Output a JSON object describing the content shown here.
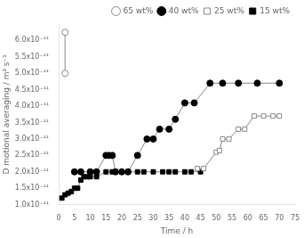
{
  "chart_data": {
    "type": "line",
    "xlabel": "Time / h",
    "ylabel": "D motional averaging / m² s⁻¹",
    "xlim": [
      0,
      75
    ],
    "ylim": [
      1e-11,
      6.5e-11
    ],
    "xticks": [
      0,
      5,
      10,
      15,
      20,
      25,
      30,
      35,
      40,
      45,
      50,
      55,
      60,
      65,
      70,
      75
    ],
    "yticks": [
      {
        "value": 1e-11,
        "label": "1.0x10⁻¹¹"
      },
      {
        "value": 1.5e-11,
        "label": "1.5x10⁻¹¹"
      },
      {
        "value": 2e-11,
        "label": "2.0x10⁻¹¹"
      },
      {
        "value": 2.5e-11,
        "label": "2.5x10⁻¹¹"
      },
      {
        "value": 3e-11,
        "label": "3.0x10⁻¹¹"
      },
      {
        "value": 3.5e-11,
        "label": "3.5x10⁻¹¹"
      },
      {
        "value": 4e-11,
        "label": "4.0x10⁻¹¹"
      },
      {
        "value": 4.5e-11,
        "label": "4.5x10⁻¹¹"
      },
      {
        "value": 5e-11,
        "label": "5.0x10⁻¹¹"
      },
      {
        "value": 5.5e-11,
        "label": "5.5x10⁻¹¹"
      },
      {
        "value": 6e-11,
        "label": "6.0x10⁻¹¹"
      }
    ],
    "grid": false,
    "legend": "upper right",
    "series": [
      {
        "name": "65 wt%",
        "color": "#888888",
        "marker": "circle-open",
        "x": [
          2,
          2
        ],
        "values": [
          5e-11,
          6.25e-11
        ]
      },
      {
        "name": "40 wt%",
        "color": "#888888",
        "marker": "circle-filled",
        "x": [
          5,
          7,
          10,
          12,
          15,
          16,
          17,
          18,
          20,
          22,
          25,
          28,
          30,
          32,
          35,
          37,
          40,
          43,
          48,
          52,
          57,
          63,
          70
        ],
        "values": [
          2e-11,
          2e-11,
          2e-11,
          2e-11,
          2.5e-11,
          2.5e-11,
          2.5e-11,
          2e-11,
          2e-11,
          2e-11,
          2.5e-11,
          3e-11,
          3e-11,
          3.3e-11,
          3.3e-11,
          3.6e-11,
          4.1e-11,
          4.1e-11,
          4.7e-11,
          4.7e-11,
          4.7e-11,
          4.7e-11,
          4.7e-11
        ]
      },
      {
        "name": "25 wt%",
        "color": "#888888",
        "marker": "square-open",
        "x": [
          44,
          46,
          50,
          51,
          52,
          54,
          57,
          59,
          62,
          65,
          68,
          70
        ],
        "values": [
          2.1e-11,
          2.1e-11,
          2.6e-11,
          2.65e-11,
          3e-11,
          3e-11,
          3.3e-11,
          3.3e-11,
          3.7e-11,
          3.7e-11,
          3.7e-11,
          3.7e-11
        ]
      },
      {
        "name": "15 wt%",
        "color": "#888888",
        "marker": "square-filled",
        "x": [
          1,
          2,
          3,
          4,
          5,
          6,
          7,
          8,
          9,
          10,
          12,
          15,
          17,
          18,
          20,
          22,
          25,
          27,
          30,
          33,
          35,
          37,
          40,
          42,
          45
        ],
        "values": [
          1.2e-11,
          1.3e-11,
          1.35e-11,
          1.4e-11,
          1.5e-11,
          1.5e-11,
          1.75e-11,
          1.85e-11,
          1.85e-11,
          1.85e-11,
          1.85e-11,
          2e-11,
          2e-11,
          2e-11,
          2e-11,
          2e-11,
          2e-11,
          2e-11,
          2e-11,
          2e-11,
          2e-11,
          2e-11,
          2e-11,
          2e-11,
          2e-11
        ]
      }
    ]
  }
}
